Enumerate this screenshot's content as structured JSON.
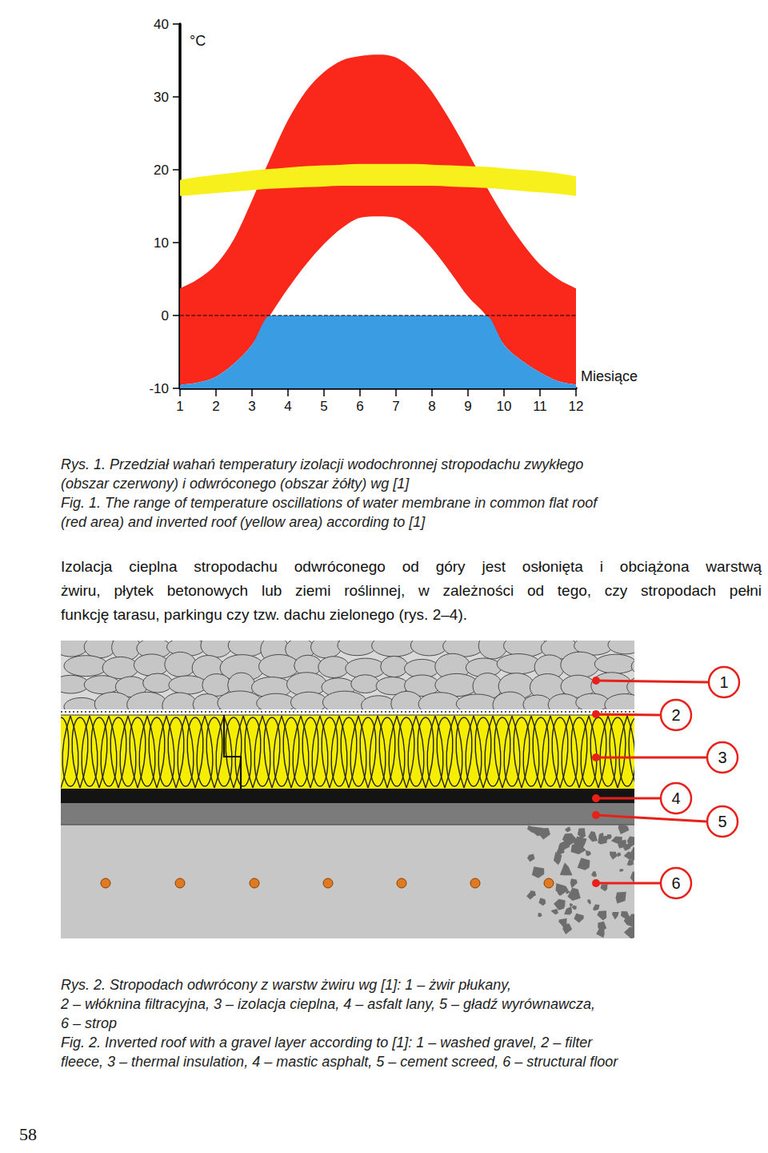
{
  "chart_data": {
    "type": "area",
    "x": [
      1,
      1.5,
      2,
      2.5,
      3,
      3.5,
      4,
      4.5,
      5,
      5.5,
      6,
      6.5,
      7,
      7.5,
      8,
      8.5,
      9,
      9.5,
      10,
      10.5,
      11,
      11.5,
      12
    ],
    "xlim": [
      1,
      12
    ],
    "xticks": [
      1,
      2,
      3,
      4,
      5,
      6,
      7,
      8,
      9,
      10,
      11,
      12
    ],
    "ylim": [
      -10,
      40
    ],
    "yticks": [
      -10,
      0,
      10,
      20,
      30,
      40
    ],
    "y_label": "°C",
    "x_label": "Miesiące",
    "grid": false,
    "series": [
      {
        "type": "band",
        "color": "#f9281a",
        "upper": [
          3.7,
          5,
          7,
          10.5,
          15.8,
          21.5,
          26.8,
          30.8,
          33.4,
          35,
          35.6,
          35.8,
          35.4,
          33.6,
          30.7,
          26.8,
          22.4,
          17.8,
          13.6,
          10,
          7,
          5,
          3.7
        ],
        "lower": [
          -9.5,
          -9.2,
          -8.4,
          -6.6,
          -4,
          0,
          3.7,
          7,
          9.8,
          12,
          13.4,
          13.6,
          13.4,
          11.8,
          9.2,
          6,
          2.6,
          0,
          -4,
          -6.2,
          -7.8,
          -9,
          -9.5
        ]
      },
      {
        "type": "area",
        "color": "#3a9de3",
        "values": [
          -9.5,
          -9.2,
          -8.4,
          -6.6,
          -4,
          0,
          0,
          0,
          0,
          0,
          0,
          0,
          0,
          0,
          0,
          0,
          0,
          0,
          -4,
          -6.2,
          -7.8,
          -9,
          -9.5
        ]
      },
      {
        "type": "band",
        "color": "#f8f01c",
        "upper": [
          18.6,
          19,
          19.3,
          19.6,
          19.9,
          20.1,
          20.3,
          20.5,
          20.6,
          20.7,
          20.8,
          20.8,
          20.8,
          20.8,
          20.7,
          20.6,
          20.5,
          20.4,
          20.2,
          20,
          19.8,
          19.5,
          19.1
        ],
        "lower": [
          16.4,
          16.6,
          16.8,
          17,
          17.2,
          17.4,
          17.5,
          17.6,
          17.7,
          17.8,
          17.8,
          17.8,
          17.8,
          17.8,
          17.8,
          17.7,
          17.6,
          17.5,
          17.3,
          17.1,
          16.9,
          16.7,
          16.4
        ]
      }
    ],
    "hlines": [
      {
        "value": 0,
        "line_style": "dashed",
        "color": "#000000"
      }
    ]
  },
  "figure1_caption": [
    "Rys. 1. Przedział wahań temperatury izolacji wodochronnej stropodachu zwykłego",
    "(obszar czerwony) i odwróconego (obszar żółty) wg [1]",
    "Fig. 1. The range of temperature oscillations of water membrane in common flat roof",
    "(red area) and inverted roof (yellow area) according to [1]"
  ],
  "paragraph": [
    "Izolacja cieplna stropodachu odwróconego od góry jest osłonięta i obciążona warstwą",
    "żwiru, płytek betonowych lub ziemi roślinnej, w zależności od tego, czy stropodach pełni",
    "funkcję tarasu, parkingu czy tzw. dachu zielonego (rys. 2–4)."
  ],
  "diagram": {
    "callouts": [
      "1",
      "2",
      "3",
      "4",
      "5",
      "6"
    ]
  },
  "figure2_caption": [
    "Rys. 2. Stropodach odwrócony z warstw żwiru wg [1]: 1 – żwir płukany,",
    "2 – włóknina filtracyjna, 3 – izolacja cieplna, 4 – asfalt lany, 5 – gładź wyrównawcza,",
    "6 – strop",
    "Fig. 2. Inverted roof with a gravel layer according to [1]: 1 – washed gravel, 2 – filter",
    "fleece, 3 – thermal insulation, 4 – mastic asphalt, 5 – cement screed, 6 – structural floor"
  ],
  "page_number": "58"
}
